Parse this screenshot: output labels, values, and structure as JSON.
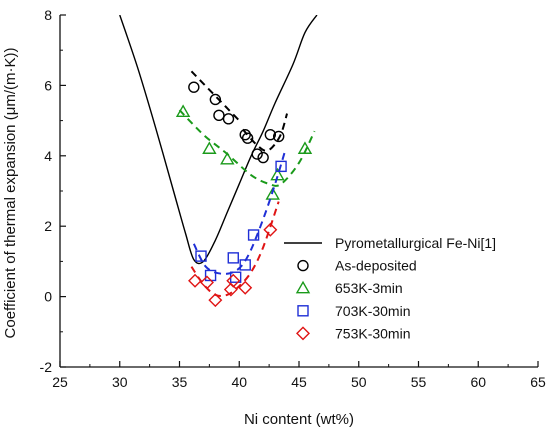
{
  "chart_data": {
    "type": "scatter",
    "xlabel": "Ni content (wt%)",
    "ylabel": "Coefficient of thermal expansion (μm/(m·K))",
    "xlim": [
      25,
      65
    ],
    "ylim": [
      -2,
      8
    ],
    "x_ticks": [
      "25",
      "30",
      "35",
      "40",
      "45",
      "50",
      "55",
      "60",
      "65"
    ],
    "y_ticks": [
      "-2",
      "0",
      "2",
      "4",
      "6",
      "8"
    ],
    "grid": false,
    "legend_position": "bottom-right",
    "series": [
      {
        "name": "Pyrometallurgical Fe-Ni[1]",
        "kind": "line",
        "color": "#000000",
        "marker": "none",
        "points": [
          [
            30.0,
            8.0
          ],
          [
            31.5,
            6.5
          ],
          [
            33.0,
            4.8
          ],
          [
            34.5,
            3.0
          ],
          [
            35.5,
            1.8
          ],
          [
            36.2,
            1.05
          ],
          [
            37.0,
            1.0
          ],
          [
            38.0,
            1.6
          ],
          [
            39.0,
            2.4
          ],
          [
            40.0,
            3.2
          ],
          [
            41.0,
            4.0
          ],
          [
            42.0,
            4.7
          ],
          [
            43.0,
            5.5
          ],
          [
            44.5,
            6.6
          ],
          [
            45.5,
            7.5
          ],
          [
            46.5,
            8.0
          ]
        ]
      },
      {
        "name": "As-deposited",
        "kind": "scatter",
        "color": "#000000",
        "marker": "circle",
        "points": [
          [
            36.2,
            5.95
          ],
          [
            38.0,
            5.6
          ],
          [
            38.3,
            5.15
          ],
          [
            39.1,
            5.05
          ],
          [
            40.5,
            4.6
          ],
          [
            40.7,
            4.5
          ],
          [
            41.5,
            4.05
          ],
          [
            42.0,
            3.95
          ],
          [
            42.6,
            4.6
          ],
          [
            43.3,
            4.55
          ]
        ],
        "fit_segments": [
          [
            [
              36.0,
              6.4
            ],
            [
              37.0,
              6.05
            ],
            [
              38.0,
              5.7
            ],
            [
              39.0,
              5.35
            ],
            [
              40.0,
              5.0
            ]
          ],
          [
            [
              40.3,
              4.75
            ],
            [
              41.5,
              4.3
            ],
            [
              42.4,
              4.15
            ],
            [
              43.4,
              4.55
            ],
            [
              44.0,
              5.2
            ]
          ]
        ]
      },
      {
        "name": "653K-3min",
        "kind": "scatter",
        "color": "#1a9a1a",
        "marker": "triangle",
        "points": [
          [
            35.3,
            5.25
          ],
          [
            37.5,
            4.2
          ],
          [
            39.0,
            3.9
          ],
          [
            42.8,
            2.9
          ],
          [
            43.2,
            3.45
          ],
          [
            45.5,
            4.2
          ]
        ],
        "fit_segments": [
          [
            [
              35.0,
              5.3
            ],
            [
              37.0,
              4.6
            ],
            [
              39.0,
              4.05
            ],
            [
              41.0,
              3.45
            ],
            [
              42.5,
              3.2
            ],
            [
              43.5,
              3.2
            ],
            [
              45.0,
              3.8
            ],
            [
              46.3,
              4.7
            ]
          ]
        ]
      },
      {
        "name": "703K-30min",
        "kind": "scatter",
        "color": "#1f2fd6",
        "marker": "square",
        "points": [
          [
            36.8,
            1.15
          ],
          [
            37.6,
            0.6
          ],
          [
            39.5,
            1.1
          ],
          [
            39.7,
            0.55
          ],
          [
            40.5,
            0.9
          ],
          [
            41.2,
            1.75
          ],
          [
            43.5,
            3.7
          ]
        ],
        "fit_segments": [
          [
            [
              36.2,
              1.5
            ],
            [
              37.2,
              0.85
            ],
            [
              38.5,
              0.65
            ],
            [
              39.8,
              0.75
            ],
            [
              40.8,
              1.2
            ],
            [
              42.0,
              2.2
            ],
            [
              43.0,
              3.2
            ],
            [
              43.8,
              4.1
            ]
          ]
        ]
      },
      {
        "name": "753K-30min",
        "kind": "scatter",
        "color": "#e01414",
        "marker": "diamond",
        "points": [
          [
            36.3,
            0.45
          ],
          [
            37.3,
            0.4
          ],
          [
            38.0,
            -0.1
          ],
          [
            39.3,
            0.2
          ],
          [
            39.5,
            0.45
          ],
          [
            40.5,
            0.25
          ],
          [
            42.6,
            1.9
          ]
        ],
        "fit_segments": [
          [
            [
              36.0,
              0.85
            ],
            [
              37.0,
              0.35
            ],
            [
              38.0,
              0.05
            ],
            [
              39.0,
              0.05
            ],
            [
              40.0,
              0.3
            ],
            [
              41.0,
              0.7
            ],
            [
              42.0,
              1.4
            ],
            [
              43.3,
              2.7
            ]
          ]
        ]
      }
    ]
  }
}
